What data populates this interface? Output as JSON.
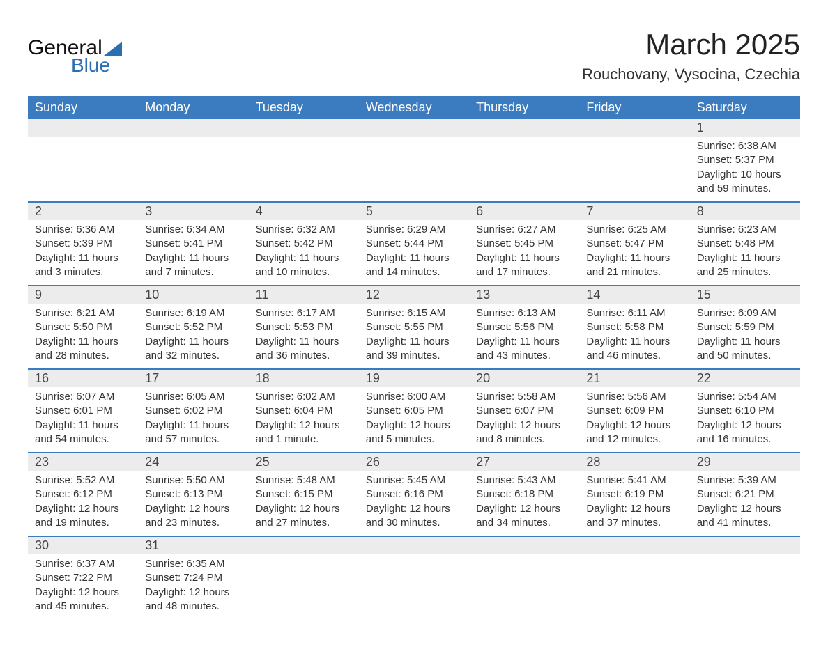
{
  "brand": {
    "word1": "General",
    "word2": "Blue",
    "accent_color": "#2b6fb3"
  },
  "title": "March 2025",
  "location": "Rouchovany, Vysocina, Czechia",
  "colors": {
    "header_bg": "#3b7bbf",
    "header_text": "#ffffff",
    "daynum_bg": "#ececec",
    "row_divider": "#3b7bbf",
    "body_text": "#333333"
  },
  "weekdays": [
    "Sunday",
    "Monday",
    "Tuesday",
    "Wednesday",
    "Thursday",
    "Friday",
    "Saturday"
  ],
  "weeks": [
    [
      null,
      null,
      null,
      null,
      null,
      null,
      {
        "n": "1",
        "sunrise": "Sunrise: 6:38 AM",
        "sunset": "Sunset: 5:37 PM",
        "day1": "Daylight: 10 hours",
        "day2": "and 59 minutes."
      }
    ],
    [
      {
        "n": "2",
        "sunrise": "Sunrise: 6:36 AM",
        "sunset": "Sunset: 5:39 PM",
        "day1": "Daylight: 11 hours",
        "day2": "and 3 minutes."
      },
      {
        "n": "3",
        "sunrise": "Sunrise: 6:34 AM",
        "sunset": "Sunset: 5:41 PM",
        "day1": "Daylight: 11 hours",
        "day2": "and 7 minutes."
      },
      {
        "n": "4",
        "sunrise": "Sunrise: 6:32 AM",
        "sunset": "Sunset: 5:42 PM",
        "day1": "Daylight: 11 hours",
        "day2": "and 10 minutes."
      },
      {
        "n": "5",
        "sunrise": "Sunrise: 6:29 AM",
        "sunset": "Sunset: 5:44 PM",
        "day1": "Daylight: 11 hours",
        "day2": "and 14 minutes."
      },
      {
        "n": "6",
        "sunrise": "Sunrise: 6:27 AM",
        "sunset": "Sunset: 5:45 PM",
        "day1": "Daylight: 11 hours",
        "day2": "and 17 minutes."
      },
      {
        "n": "7",
        "sunrise": "Sunrise: 6:25 AM",
        "sunset": "Sunset: 5:47 PM",
        "day1": "Daylight: 11 hours",
        "day2": "and 21 minutes."
      },
      {
        "n": "8",
        "sunrise": "Sunrise: 6:23 AM",
        "sunset": "Sunset: 5:48 PM",
        "day1": "Daylight: 11 hours",
        "day2": "and 25 minutes."
      }
    ],
    [
      {
        "n": "9",
        "sunrise": "Sunrise: 6:21 AM",
        "sunset": "Sunset: 5:50 PM",
        "day1": "Daylight: 11 hours",
        "day2": "and 28 minutes."
      },
      {
        "n": "10",
        "sunrise": "Sunrise: 6:19 AM",
        "sunset": "Sunset: 5:52 PM",
        "day1": "Daylight: 11 hours",
        "day2": "and 32 minutes."
      },
      {
        "n": "11",
        "sunrise": "Sunrise: 6:17 AM",
        "sunset": "Sunset: 5:53 PM",
        "day1": "Daylight: 11 hours",
        "day2": "and 36 minutes."
      },
      {
        "n": "12",
        "sunrise": "Sunrise: 6:15 AM",
        "sunset": "Sunset: 5:55 PM",
        "day1": "Daylight: 11 hours",
        "day2": "and 39 minutes."
      },
      {
        "n": "13",
        "sunrise": "Sunrise: 6:13 AM",
        "sunset": "Sunset: 5:56 PM",
        "day1": "Daylight: 11 hours",
        "day2": "and 43 minutes."
      },
      {
        "n": "14",
        "sunrise": "Sunrise: 6:11 AM",
        "sunset": "Sunset: 5:58 PM",
        "day1": "Daylight: 11 hours",
        "day2": "and 46 minutes."
      },
      {
        "n": "15",
        "sunrise": "Sunrise: 6:09 AM",
        "sunset": "Sunset: 5:59 PM",
        "day1": "Daylight: 11 hours",
        "day2": "and 50 minutes."
      }
    ],
    [
      {
        "n": "16",
        "sunrise": "Sunrise: 6:07 AM",
        "sunset": "Sunset: 6:01 PM",
        "day1": "Daylight: 11 hours",
        "day2": "and 54 minutes."
      },
      {
        "n": "17",
        "sunrise": "Sunrise: 6:05 AM",
        "sunset": "Sunset: 6:02 PM",
        "day1": "Daylight: 11 hours",
        "day2": "and 57 minutes."
      },
      {
        "n": "18",
        "sunrise": "Sunrise: 6:02 AM",
        "sunset": "Sunset: 6:04 PM",
        "day1": "Daylight: 12 hours",
        "day2": "and 1 minute."
      },
      {
        "n": "19",
        "sunrise": "Sunrise: 6:00 AM",
        "sunset": "Sunset: 6:05 PM",
        "day1": "Daylight: 12 hours",
        "day2": "and 5 minutes."
      },
      {
        "n": "20",
        "sunrise": "Sunrise: 5:58 AM",
        "sunset": "Sunset: 6:07 PM",
        "day1": "Daylight: 12 hours",
        "day2": "and 8 minutes."
      },
      {
        "n": "21",
        "sunrise": "Sunrise: 5:56 AM",
        "sunset": "Sunset: 6:09 PM",
        "day1": "Daylight: 12 hours",
        "day2": "and 12 minutes."
      },
      {
        "n": "22",
        "sunrise": "Sunrise: 5:54 AM",
        "sunset": "Sunset: 6:10 PM",
        "day1": "Daylight: 12 hours",
        "day2": "and 16 minutes."
      }
    ],
    [
      {
        "n": "23",
        "sunrise": "Sunrise: 5:52 AM",
        "sunset": "Sunset: 6:12 PM",
        "day1": "Daylight: 12 hours",
        "day2": "and 19 minutes."
      },
      {
        "n": "24",
        "sunrise": "Sunrise: 5:50 AM",
        "sunset": "Sunset: 6:13 PM",
        "day1": "Daylight: 12 hours",
        "day2": "and 23 minutes."
      },
      {
        "n": "25",
        "sunrise": "Sunrise: 5:48 AM",
        "sunset": "Sunset: 6:15 PM",
        "day1": "Daylight: 12 hours",
        "day2": "and 27 minutes."
      },
      {
        "n": "26",
        "sunrise": "Sunrise: 5:45 AM",
        "sunset": "Sunset: 6:16 PM",
        "day1": "Daylight: 12 hours",
        "day2": "and 30 minutes."
      },
      {
        "n": "27",
        "sunrise": "Sunrise: 5:43 AM",
        "sunset": "Sunset: 6:18 PM",
        "day1": "Daylight: 12 hours",
        "day2": "and 34 minutes."
      },
      {
        "n": "28",
        "sunrise": "Sunrise: 5:41 AM",
        "sunset": "Sunset: 6:19 PM",
        "day1": "Daylight: 12 hours",
        "day2": "and 37 minutes."
      },
      {
        "n": "29",
        "sunrise": "Sunrise: 5:39 AM",
        "sunset": "Sunset: 6:21 PM",
        "day1": "Daylight: 12 hours",
        "day2": "and 41 minutes."
      }
    ],
    [
      {
        "n": "30",
        "sunrise": "Sunrise: 6:37 AM",
        "sunset": "Sunset: 7:22 PM",
        "day1": "Daylight: 12 hours",
        "day2": "and 45 minutes."
      },
      {
        "n": "31",
        "sunrise": "Sunrise: 6:35 AM",
        "sunset": "Sunset: 7:24 PM",
        "day1": "Daylight: 12 hours",
        "day2": "and 48 minutes."
      },
      null,
      null,
      null,
      null,
      null
    ]
  ]
}
